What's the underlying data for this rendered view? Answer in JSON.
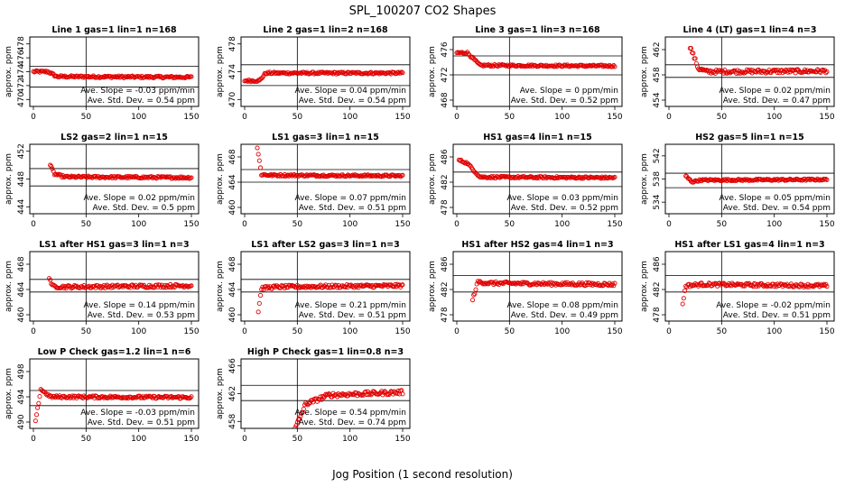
{
  "figure": {
    "title": "SPL_100207  CO2 Shapes",
    "xlabel": "Jog Position (1 second resolution)"
  },
  "chart_data": [
    {
      "type": "scatter",
      "title": "Line 1 gas=1 lin=1 n=168",
      "ylabel": "approx. ppm",
      "xlim": [
        0,
        150
      ],
      "xticks": [
        0,
        50,
        100,
        150
      ],
      "ylim": [
        469,
        479
      ],
      "yticks": [
        470,
        472,
        474,
        476,
        478
      ],
      "hlines": [
        471.8,
        474.8
      ],
      "vline": 50,
      "slope": "Ave. Slope = -0.03 ppm/min",
      "stddev": "Ave. Std. Dev. = 0.54 ppm",
      "profile": [
        [
          0,
          474
        ],
        [
          14,
          474
        ],
        [
          22,
          473.3
        ],
        [
          150,
          473.2
        ]
      ],
      "noise": 0.15
    },
    {
      "type": "scatter",
      "title": "Line 2 gas=1 lin=2 n=168",
      "ylabel": "approx. ppm",
      "xlim": [
        0,
        150
      ],
      "xticks": [
        0,
        50,
        100,
        150
      ],
      "ylim": [
        469,
        479
      ],
      "yticks": [
        470,
        474,
        478
      ],
      "hlines": [
        472,
        475
      ],
      "vline": 50,
      "slope": "Ave. Slope = 0.04 ppm/min",
      "stddev": "Ave. Std. Dev. = 0.54 ppm",
      "profile": [
        [
          0,
          472.7
        ],
        [
          14,
          472.7
        ],
        [
          20,
          473.8
        ],
        [
          150,
          473.8
        ]
      ],
      "noise": 0.15
    },
    {
      "type": "scatter",
      "title": "Line 3 gas=1 lin=3 n=168",
      "ylabel": "approx. ppm",
      "xlim": [
        0,
        150
      ],
      "xticks": [
        0,
        50,
        100,
        150
      ],
      "ylim": [
        467,
        478
      ],
      "yticks": [
        468,
        472,
        476
      ],
      "hlines": [
        472,
        475
      ],
      "vline": 50,
      "slope": "Ave. Slope = 0 ppm/min",
      "stddev": "Ave. Std. Dev. = 0.52 ppm",
      "profile": [
        [
          0,
          475.5
        ],
        [
          10,
          475.5
        ],
        [
          22,
          473.5
        ],
        [
          150,
          473.4
        ]
      ],
      "noise": 0.15
    },
    {
      "type": "scatter",
      "title": "Line 4 (LT) gas=1 lin=4 n=3",
      "ylabel": "approx. ppm",
      "xlim": [
        0,
        150
      ],
      "xticks": [
        0,
        50,
        100,
        150
      ],
      "ylim": [
        453,
        464
      ],
      "yticks": [
        454,
        458,
        462
      ],
      "hlines": [
        457.6,
        459.6
      ],
      "vline": 50,
      "slope": "Ave. Slope = 0.02 ppm/min",
      "stddev": "Ave. Std. Dev. = 0.47 ppm",
      "profile": [
        [
          20,
          462.5
        ],
        [
          28,
          459
        ],
        [
          36,
          458.5
        ],
        [
          150,
          458.6
        ]
      ],
      "noise": 0.3
    },
    {
      "type": "scatter",
      "title": "LS2 gas=2 lin=1 n=15",
      "ylabel": "approx. ppm",
      "xlim": [
        0,
        150
      ],
      "xticks": [
        0,
        50,
        100,
        150
      ],
      "ylim": [
        443,
        453
      ],
      "yticks": [
        444,
        448,
        452
      ],
      "hlines": [
        447,
        449.5
      ],
      "vline": 50,
      "slope": "Ave. Slope = 0.02 ppm/min",
      "stddev": "Ave. Std. Dev. = 0.5 ppm",
      "profile": [
        [
          16,
          450
        ],
        [
          20,
          448.7
        ],
        [
          30,
          448.3
        ],
        [
          150,
          448.2
        ]
      ],
      "noise": 0.15
    },
    {
      "type": "scatter",
      "title": "LS1 gas=3 lin=1 n=15",
      "ylabel": "approx. ppm",
      "xlim": [
        0,
        150
      ],
      "xticks": [
        0,
        50,
        100,
        150
      ],
      "ylim": [
        459,
        470
      ],
      "yticks": [
        460,
        464,
        468
      ],
      "hlines": [
        464,
        466
      ],
      "vline": 50,
      "slope": "Ave. Slope = 0.07 ppm/min",
      "stddev": "Ave. Std. Dev. = 0.51 ppm",
      "profile": [
        [
          12,
          469.5
        ],
        [
          16,
          465.2
        ],
        [
          24,
          465.1
        ],
        [
          150,
          465
        ]
      ],
      "noise": 0.15
    },
    {
      "type": "scatter",
      "title": "HS1 gas=4 lin=1 n=15",
      "ylabel": "approx. ppm",
      "xlim": [
        0,
        150
      ],
      "xticks": [
        0,
        50,
        100,
        150
      ],
      "ylim": [
        477,
        488
      ],
      "yticks": [
        478,
        482,
        486
      ],
      "hlines": [
        481.3,
        483.6
      ],
      "vline": 50,
      "slope": "Ave. Slope = 0.03 ppm/min",
      "stddev": "Ave. Std. Dev. = 0.52 ppm",
      "profile": [
        [
          2,
          485.5
        ],
        [
          10,
          485
        ],
        [
          22,
          482.8
        ],
        [
          150,
          482.7
        ]
      ],
      "noise": 0.15
    },
    {
      "type": "scatter",
      "title": "HS2 gas=5 lin=1 n=15",
      "ylabel": "approx. ppm",
      "xlim": [
        0,
        150
      ],
      "xticks": [
        0,
        50,
        100,
        150
      ],
      "ylim": [
        532,
        544
      ],
      "yticks": [
        534,
        538,
        542
      ],
      "hlines": [
        536.5,
        539
      ],
      "vline": 50,
      "slope": "Ave. Slope = 0.05 ppm/min",
      "stddev": "Ave. Std. Dev. = 0.54 ppm",
      "profile": [
        [
          16,
          538.5
        ],
        [
          22,
          537.5
        ],
        [
          30,
          537.8
        ],
        [
          150,
          537.9
        ]
      ],
      "noise": 0.15
    },
    {
      "type": "scatter",
      "title": "LS1 after HS1 gas=3 lin=1 n=3",
      "ylabel": "approx. ppm",
      "xlim": [
        0,
        150
      ],
      "xticks": [
        0,
        50,
        100,
        150
      ],
      "ylim": [
        459,
        470
      ],
      "yticks": [
        460,
        464,
        468
      ],
      "hlines": [
        463.6,
        465.6
      ],
      "vline": 50,
      "slope": "Ave. Slope = 0.14 ppm/min",
      "stddev": "Ave. Std. Dev. = 0.53 ppm",
      "profile": [
        [
          15,
          466
        ],
        [
          18,
          464.5
        ],
        [
          30,
          464.4
        ],
        [
          150,
          464.6
        ]
      ],
      "noise": 0.25
    },
    {
      "type": "scatter",
      "title": "LS1 after LS2 gas=3 lin=1 n=3",
      "ylabel": "approx. ppm",
      "xlim": [
        0,
        150
      ],
      "xticks": [
        0,
        50,
        100,
        150
      ],
      "ylim": [
        459,
        470
      ],
      "yticks": [
        460,
        464,
        468
      ],
      "hlines": [
        463.6,
        465.6
      ],
      "vline": 50,
      "slope": "Ave. Slope = 0.21 ppm/min",
      "stddev": "Ave. Std. Dev. = 0.51 ppm",
      "profile": [
        [
          13,
          460.6
        ],
        [
          16,
          464.2
        ],
        [
          30,
          464.4
        ],
        [
          150,
          464.6
        ]
      ],
      "noise": 0.25
    },
    {
      "type": "scatter",
      "title": "HS1 after HS2 gas=4 lin=1 n=3",
      "ylabel": "approx. ppm",
      "xlim": [
        0,
        150
      ],
      "xticks": [
        0,
        50,
        100,
        150
      ],
      "ylim": [
        477,
        488
      ],
      "yticks": [
        478,
        482,
        486
      ],
      "hlines": [
        481.6,
        484.2
      ],
      "vline": 50,
      "slope": "Ave. Slope = 0.08 ppm/min",
      "stddev": "Ave. Std. Dev. = 0.49 ppm",
      "profile": [
        [
          15,
          480.4
        ],
        [
          20,
          483.2
        ],
        [
          30,
          483
        ],
        [
          150,
          482.8
        ]
      ],
      "noise": 0.25
    },
    {
      "type": "scatter",
      "title": "HS1 after LS1 gas=4 lin=1 n=3",
      "ylabel": "approx. ppm",
      "xlim": [
        0,
        150
      ],
      "xticks": [
        0,
        50,
        100,
        150
      ],
      "ylim": [
        477,
        488
      ],
      "yticks": [
        478,
        482,
        486
      ],
      "hlines": [
        481.6,
        484.2
      ],
      "vline": 50,
      "slope": "Ave. Slope = -0.02 ppm/min",
      "stddev": "Ave. Std. Dev. = 0.51 ppm",
      "profile": [
        [
          13,
          479.8
        ],
        [
          16,
          482.6
        ],
        [
          30,
          482.8
        ],
        [
          150,
          482.6
        ]
      ],
      "noise": 0.25
    },
    {
      "type": "scatter",
      "title": "Low P Check gas=1.2 lin=1 n=6",
      "ylabel": "approx. ppm",
      "xlim": [
        0,
        150
      ],
      "xticks": [
        0,
        50,
        100,
        150
      ],
      "ylim": [
        489,
        500
      ],
      "yticks": [
        490,
        494,
        498
      ],
      "hlines": [
        492.6,
        495
      ],
      "vline": 50,
      "slope": "Ave. Slope = -0.03 ppm/min",
      "stddev": "Ave. Std. Dev. = 0.51 ppm",
      "profile": [
        [
          2,
          490
        ],
        [
          7,
          495.2
        ],
        [
          16,
          494
        ],
        [
          150,
          493.9
        ]
      ],
      "noise": 0.2
    },
    {
      "type": "scatter",
      "title": "High P Check gas=1 lin=0.8 n=3",
      "ylabel": "approx. ppm",
      "xlim": [
        0,
        150
      ],
      "xticks": [
        0,
        50,
        100,
        150
      ],
      "ylim": [
        457,
        467
      ],
      "yticks": [
        458,
        462,
        466
      ],
      "hlines": [
        461,
        463.2
      ],
      "vline": 50,
      "slope": "Ave. Slope = 0.54 ppm/min",
      "stddev": "Ave. Std. Dev. = 0.74 ppm",
      "profile": [
        [
          48,
          457
        ],
        [
          58,
          460.5
        ],
        [
          80,
          461.8
        ],
        [
          150,
          462.2
        ]
      ],
      "noise": 0.3
    }
  ]
}
